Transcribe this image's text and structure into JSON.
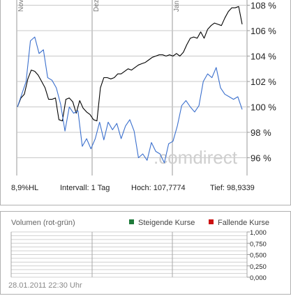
{
  "chart_data": [
    {
      "type": "line",
      "x_labels": [
        "Nov",
        "Dez",
        "Jan"
      ],
      "y_ticks": [
        "96 %",
        "98 %",
        "100 %",
        "102 %",
        "104 %",
        "106 %",
        "108 %"
      ],
      "ylim": [
        95,
        108.5
      ],
      "grid": true,
      "watermark": ".comdirect",
      "series": [
        {
          "color": "#000000",
          "values": [
            100.0,
            100.7,
            101.0,
            102.2,
            102.9,
            102.8,
            102.5,
            102.0,
            101.5,
            100.6,
            100.6,
            100.7,
            99.0,
            98.9,
            100.6,
            100.7,
            100.4,
            99.5,
            100.5,
            99.9,
            99.6,
            99.4,
            99.0,
            98.9,
            101.5,
            102.3,
            102.3,
            102.2,
            102.3,
            102.6,
            102.6,
            102.8,
            103.0,
            102.9,
            103.1,
            103.3,
            103.4,
            103.5,
            103.7,
            103.9,
            104.0,
            104.1,
            104.1,
            104.0,
            104.1,
            104.0,
            104.2,
            104.0,
            104.3,
            104.9,
            105.4,
            105.5,
            105.4,
            105.9,
            105.4,
            106.1,
            106.4,
            106.6,
            106.5,
            106.4,
            107.0,
            107.5,
            107.8,
            107.8,
            107.9,
            106.5
          ]
        },
        {
          "color": "#3a6fcd",
          "values": [
            100.0,
            101.0,
            102.0,
            105.2,
            105.5,
            104.2,
            104.5,
            102.3,
            102.1,
            101.5,
            100.2,
            98.1,
            100.0,
            99.5,
            99.7,
            96.9,
            97.5,
            96.7,
            97.5,
            98.8,
            97.4,
            98.8,
            98.2,
            98.7,
            97.5,
            98.5,
            99.0,
            98.1,
            96.0,
            96.3,
            95.8,
            97.2,
            96.5,
            96.3,
            95.6,
            97.1,
            97.3,
            98.5,
            100.1,
            100.5,
            100.0,
            99.6,
            100.1,
            102.0,
            102.6,
            102.3,
            103.1,
            101.5,
            101.0,
            100.8,
            100.6,
            100.8,
            99.8
          ]
        }
      ]
    },
    {
      "type": "bar",
      "title": "Volumen (rot-grün)",
      "y_ticks": [
        "1,000",
        "0,750",
        "0,500",
        "0,250",
        "0,000"
      ],
      "ylim": [
        0,
        1
      ],
      "grid": true,
      "legend": [
        {
          "name": "Steigende Kurse",
          "color": "#1f7a3a"
        },
        {
          "name": "Fallende Kurse",
          "color": "#cc1111"
        }
      ],
      "series": []
    }
  ],
  "stats": {
    "hl": "8,9%HL",
    "interval": "Intervall: 1 Tag",
    "high": "Hoch: 107,7774",
    "low": "Tief: 98,9339"
  },
  "timestamp": "28.01.2011 22:30 Uhr"
}
